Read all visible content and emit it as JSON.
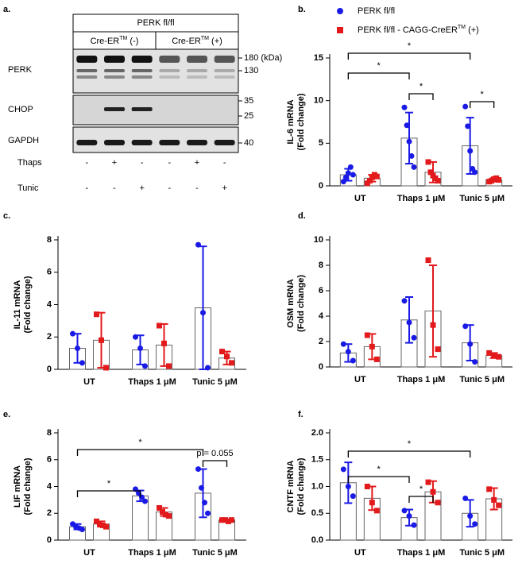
{
  "blot": {
    "panel": "a.",
    "header": "PERK fl/fl",
    "groups": [
      [
        "Cre-ER",
        "TM",
        " (-)"
      ],
      [
        "Cre-ER",
        "TM",
        " (+)"
      ]
    ],
    "rows": [
      "PERK",
      "CHOP",
      "GAPDH"
    ],
    "markers": [
      "180 (kDa)",
      "130",
      "35",
      "25",
      "40"
    ],
    "treatments": [
      {
        "name": "Thaps",
        "signs": [
          "-",
          "+",
          "-",
          "-",
          "+",
          "-"
        ]
      },
      {
        "name": "Tunic",
        "signs": [
          "-",
          "-",
          "+",
          "-",
          "-",
          "+"
        ]
      }
    ]
  },
  "legend": [
    {
      "label": [
        "PERK fl/fl"
      ],
      "color": "#1a1ae6",
      "marker": "circle"
    },
    {
      "label": [
        "PERK fl/fl - CAGG-CreER",
        "TM",
        " (+)"
      ],
      "color": "#e31a1c",
      "marker": "square"
    }
  ],
  "chart_data": [
    {
      "type": "bar",
      "panel": "b.",
      "ylabel": [
        "IL-6 mRNA",
        "(Fold change)"
      ],
      "categories": [
        "UT",
        "Thaps 1 μM",
        "Tunic 5 μM"
      ],
      "ylim": [
        0,
        15
      ],
      "yticks": [
        0,
        5,
        10,
        15
      ],
      "series": [
        {
          "color": "#1a1ae6",
          "marker": "circle",
          "values": [
            1.3,
            5.6,
            4.7
          ],
          "errors": [
            0.7,
            3.0,
            3.3
          ],
          "points": [
            [
              0.5,
              1.0,
              1.5,
              2.2,
              1.3
            ],
            [
              9.2,
              7.1,
              5.2,
              3.5,
              2.2
            ],
            [
              9.3,
              7.0,
              4.1,
              2.0,
              1.6
            ]
          ]
        },
        {
          "color": "#e31a1c",
          "marker": "square",
          "values": [
            0.9,
            1.6,
            0.7
          ],
          "errors": [
            0.4,
            1.2,
            0.2
          ],
          "points": [
            [
              0.3,
              0.6,
              1.0,
              1.3,
              1.1
            ],
            [
              2.8,
              1.6,
              1.2,
              0.9,
              0.6
            ],
            [
              0.5,
              0.6,
              0.8,
              0.9,
              0.7
            ]
          ]
        }
      ],
      "annotations": [
        "*",
        "*",
        "*",
        "*"
      ]
    },
    {
      "type": "bar",
      "panel": "c.",
      "ylabel": [
        "IL-11 mRNA",
        "(Fold change)"
      ],
      "categories": [
        "UT",
        "Thaps 1 μM",
        "Tunic 5 μM"
      ],
      "ylim": [
        0,
        8
      ],
      "yticks": [
        0,
        2,
        4,
        6,
        8
      ],
      "series": [
        {
          "color": "#1a1ae6",
          "marker": "circle",
          "values": [
            1.3,
            1.2,
            3.8
          ],
          "errors": [
            0.9,
            0.9,
            3.8
          ],
          "points": [
            [
              2.2,
              1.3,
              0.4
            ],
            [
              2.0,
              1.3,
              0.2
            ],
            [
              7.7,
              3.5,
              0.1
            ]
          ]
        },
        {
          "color": "#e31a1c",
          "marker": "square",
          "values": [
            1.8,
            1.5,
            0.7
          ],
          "errors": [
            1.7,
            1.3,
            0.4
          ],
          "points": [
            [
              3.4,
              1.8,
              0.1
            ],
            [
              2.7,
              1.6,
              0.2
            ],
            [
              1.1,
              0.8,
              0.4
            ]
          ]
        }
      ],
      "annotations": []
    },
    {
      "type": "bar",
      "panel": "d.",
      "ylabel": [
        "OSM mRNA",
        "(Fold change)"
      ],
      "categories": [
        "UT",
        "Thaps 1 μM",
        "Tunic 5 μM"
      ],
      "ylim": [
        0,
        10
      ],
      "yticks": [
        0,
        2,
        4,
        6,
        8,
        10
      ],
      "series": [
        {
          "color": "#1a1ae6",
          "marker": "circle",
          "values": [
            1.1,
            3.7,
            1.9
          ],
          "errors": [
            0.7,
            1.8,
            1.4
          ],
          "points": [
            [
              1.8,
              1.2,
              0.5
            ],
            [
              5.2,
              3.5,
              2.3
            ],
            [
              3.2,
              1.8,
              0.4
            ]
          ]
        },
        {
          "color": "#e31a1c",
          "marker": "square",
          "values": [
            1.6,
            4.4,
            0.9
          ],
          "errors": [
            1.0,
            3.6,
            0.2
          ],
          "points": [
            [
              2.5,
              1.6,
              0.6
            ],
            [
              8.4,
              3.3,
              1.4
            ],
            [
              1.1,
              0.9,
              0.8
            ]
          ]
        }
      ],
      "annotations": []
    },
    {
      "type": "bar",
      "panel": "e.",
      "ylabel": [
        "LIF mRNA",
        "(Fold change)"
      ],
      "categories": [
        "UT",
        "Thaps 1 μM",
        "Tunic 5 μM"
      ],
      "ylim": [
        0,
        8
      ],
      "yticks": [
        0,
        2,
        4,
        6,
        8
      ],
      "series": [
        {
          "color": "#1a1ae6",
          "marker": "circle",
          "values": [
            1.0,
            3.3,
            3.5
          ],
          "errors": [
            0.2,
            0.4,
            1.8
          ],
          "points": [
            [
              1.2,
              1.0,
              0.9,
              0.8
            ],
            [
              3.8,
              3.5,
              3.2,
              2.9
            ],
            [
              5.3,
              3.9,
              2.8,
              2.0
            ]
          ]
        },
        {
          "color": "#e31a1c",
          "marker": "square",
          "values": [
            1.2,
            2.1,
            1.5
          ],
          "errors": [
            0.2,
            0.3,
            0.05
          ],
          "points": [
            [
              1.4,
              1.2,
              1.1,
              1.0
            ],
            [
              2.4,
              2.1,
              1.9,
              1.8
            ],
            [
              1.5,
              1.5,
              1.4,
              1.5
            ]
          ]
        }
      ],
      "annotations": [
        "*",
        "*",
        "p = 0.055"
      ]
    },
    {
      "type": "bar",
      "panel": "f.",
      "ylabel": [
        "CNTF mRNA",
        "(Fold change)"
      ],
      "categories": [
        "UT",
        "Thaps 1 μM",
        "Tunic 5 μM"
      ],
      "ylim": [
        0,
        2
      ],
      "yticks": [
        {
          "value": 0,
          "label": "0.0"
        },
        {
          "value": 0.5,
          "label": "0.5"
        },
        {
          "value": 1,
          "label": "1.0"
        },
        {
          "value": 1.5,
          "label": "1.5"
        },
        {
          "value": 2,
          "label": "2.0"
        }
      ],
      "series": [
        {
          "color": "#1a1ae6",
          "marker": "circle",
          "values": [
            1.07,
            0.42,
            0.5
          ],
          "errors": [
            0.38,
            0.15,
            0.25
          ],
          "points": [
            [
              1.32,
              1.0,
              0.82
            ],
            [
              0.55,
              0.45,
              0.28
            ],
            [
              0.78,
              0.45,
              0.3
            ]
          ]
        },
        {
          "color": "#e31a1c",
          "marker": "square",
          "values": [
            0.78,
            0.9,
            0.77
          ],
          "errors": [
            0.22,
            0.2,
            0.2
          ],
          "points": [
            [
              1.0,
              0.7,
              0.55
            ],
            [
              1.08,
              0.9,
              0.7
            ],
            [
              0.95,
              0.75,
              0.65
            ]
          ]
        }
      ],
      "annotations": [
        "*",
        "*",
        "*"
      ]
    }
  ]
}
